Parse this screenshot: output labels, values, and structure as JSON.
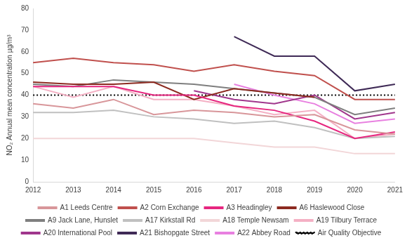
{
  "chart_data": {
    "type": "line",
    "y_label": "NO₂ Annual mean concentration µg/m³",
    "categories": [
      "2012",
      "2013",
      "2014",
      "2015",
      "2016",
      "2017",
      "2018",
      "2019",
      "2020",
      "2021"
    ],
    "ylim": [
      0,
      80
    ],
    "yticks": [
      0,
      10,
      20,
      30,
      40,
      50,
      60,
      70,
      80
    ],
    "grid": false,
    "legend": "bottom",
    "series": [
      {
        "name": "A1 Leeds Centre",
        "color": "#d8969a",
        "values": [
          36,
          34,
          38,
          31,
          33,
          32,
          30,
          31,
          24,
          22
        ]
      },
      {
        "name": "A2 Corn Exchange",
        "color": "#c0504d",
        "values": [
          55,
          57,
          55,
          54,
          51,
          54,
          51,
          49,
          38,
          38
        ]
      },
      {
        "name": "A3 Headingley",
        "color": "#e6267f",
        "values": [
          44,
          44,
          44,
          40,
          40,
          35,
          33,
          28,
          20,
          23
        ]
      },
      {
        "name": "A6 Haslewood Close",
        "color": "#8c2a20",
        "values": [
          46,
          45,
          45,
          46,
          38,
          43,
          41,
          39,
          null,
          null
        ]
      },
      {
        "name": "A9 Jack Lane, Hunslet",
        "color": "#7f7f7f",
        "values": [
          45,
          44,
          47,
          46,
          45,
          43,
          41,
          39,
          31,
          34
        ]
      },
      {
        "name": "A17 Kirkstall Rd",
        "color": "#c0c0c0",
        "values": [
          32,
          32,
          33,
          30,
          29,
          27,
          28,
          25,
          20,
          21
        ]
      },
      {
        "name": "A18 Temple Newsam",
        "color": "#f2d6d8",
        "values": [
          20,
          20,
          20,
          20,
          20,
          18,
          16,
          16,
          13,
          13
        ]
      },
      {
        "name": "A19 Tilbury Terrace",
        "color": "#f4b0c4",
        "values": [
          44,
          39,
          44,
          38,
          38,
          35,
          31,
          33,
          20,
          22
        ]
      },
      {
        "name": "A20 International Pool",
        "color": "#a0368c",
        "values": [
          null,
          null,
          null,
          null,
          42,
          38,
          36,
          40,
          29,
          32
        ]
      },
      {
        "name": "A21 Bishopgate Street",
        "color": "#3f2a56",
        "values": [
          null,
          null,
          null,
          null,
          null,
          67,
          58,
          58,
          42,
          45
        ]
      },
      {
        "name": "A22 Abbey Road",
        "color": "#e880e0",
        "values": [
          null,
          null,
          null,
          null,
          null,
          45,
          40,
          36,
          27,
          29
        ]
      },
      {
        "name": "Air Quality Objective",
        "color": "#000000",
        "line_style": "dotted",
        "values": [
          40,
          40,
          40,
          40,
          40,
          40,
          40,
          40,
          40,
          40
        ]
      }
    ]
  }
}
